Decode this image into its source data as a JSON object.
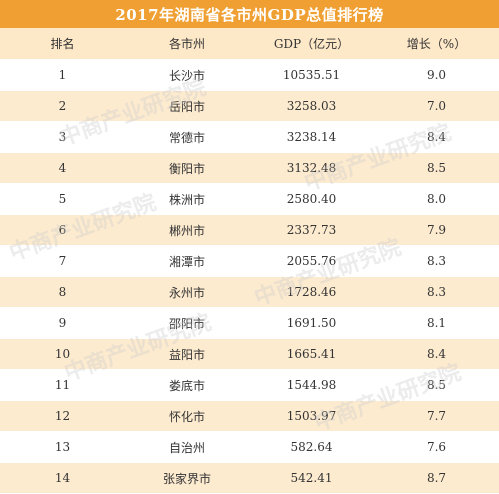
{
  "title": "2017年湖南省各市州GDP总值排行榜",
  "chart_data": {
    "type": "table",
    "title": "2017年湖南省各市州GDP总值排行榜",
    "columns": [
      "排名",
      "各市州",
      "GDP（亿元）",
      "增长（%）"
    ],
    "rows": [
      [
        "1",
        "长沙市",
        "10535.51",
        "9.0"
      ],
      [
        "2",
        "岳阳市",
        "3258.03",
        "7.0"
      ],
      [
        "3",
        "常德市",
        "3238.14",
        "8.4"
      ],
      [
        "4",
        "衡阳市",
        "3132.48",
        "8.5"
      ],
      [
        "5",
        "株洲市",
        "2580.40",
        "8.0"
      ],
      [
        "6",
        "郴州市",
        "2337.73",
        "7.9"
      ],
      [
        "7",
        "湘潭市",
        "2055.76",
        "8.3"
      ],
      [
        "8",
        "永州市",
        "1728.46",
        "8.3"
      ],
      [
        "9",
        "邵阳市",
        "1691.50",
        "8.1"
      ],
      [
        "10",
        "益阳市",
        "1665.41",
        "8.4"
      ],
      [
        "11",
        "娄底市",
        "1544.98",
        "8.5"
      ],
      [
        "12",
        "怀化市",
        "1503.97",
        "7.7"
      ],
      [
        "13",
        "自治州",
        "582.64",
        "7.6"
      ],
      [
        "14",
        "张家界市",
        "542.41",
        "8.7"
      ]
    ]
  },
  "watermark": "中商产业研究院",
  "colors": {
    "title_bg": "#f0a033",
    "header_bg": "#fde8c8",
    "stripe_bg": "#fdebd0"
  }
}
